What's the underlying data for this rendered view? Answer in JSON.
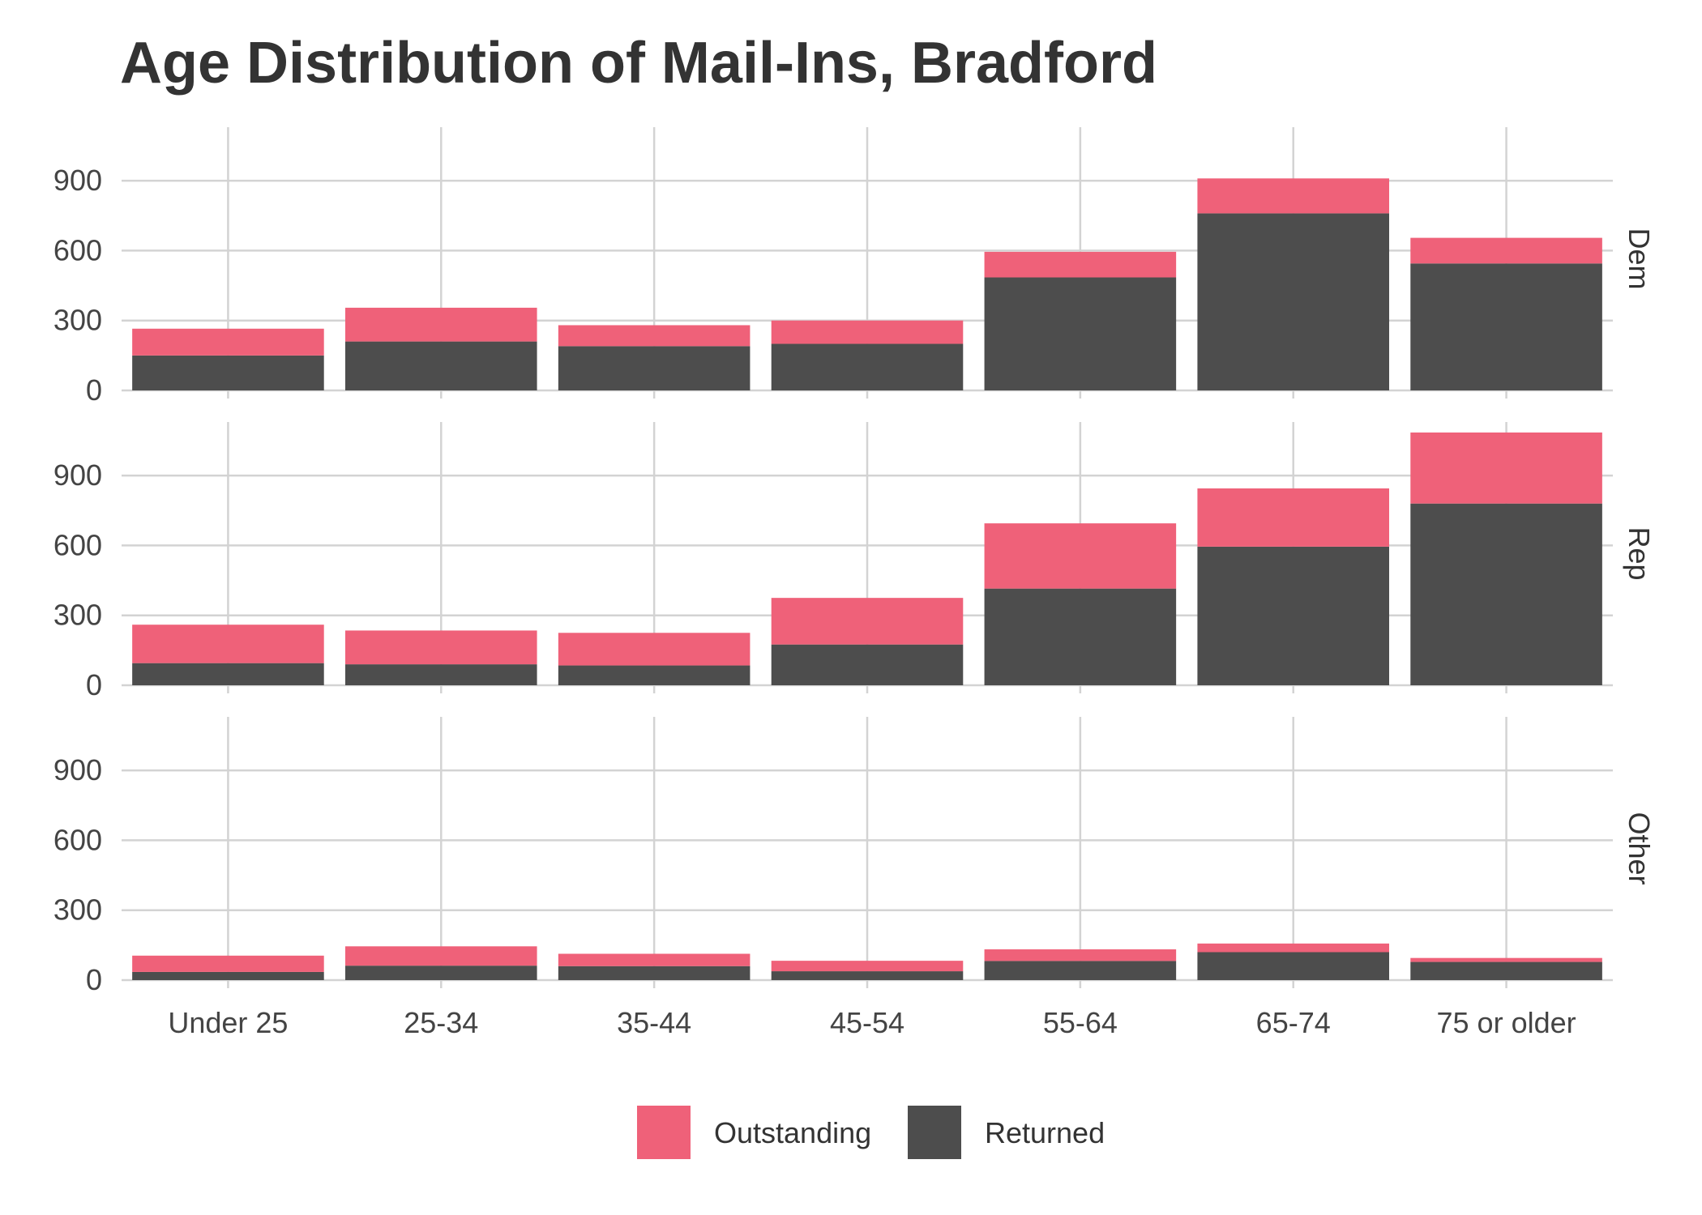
{
  "chart_data": {
    "type": "bar",
    "stacked": true,
    "faceted": true,
    "title": "Age Distribution of Mail-Ins, Bradford",
    "xlabel": "",
    "ylabel": "",
    "categories": [
      "Under 25",
      "25-34",
      "35-44",
      "45-54",
      "55-64",
      "65-74",
      "75 or older"
    ],
    "ylim": [
      0,
      1130
    ],
    "yticks": [
      0,
      300,
      600,
      900
    ],
    "legend_position": "bottom",
    "grid": true,
    "series_colors": {
      "Outstanding": "#EF6179",
      "Returned": "#4D4D4D"
    },
    "legend": [
      "Outstanding",
      "Returned"
    ],
    "facets": [
      {
        "name": "Dem",
        "series": [
          {
            "name": "Returned",
            "values": [
              150,
              210,
              190,
              200,
              485,
              760,
              545
            ]
          },
          {
            "name": "Outstanding",
            "values": [
              115,
              145,
              90,
              100,
              110,
              150,
              110
            ]
          }
        ]
      },
      {
        "name": "Rep",
        "series": [
          {
            "name": "Returned",
            "values": [
              95,
              90,
              85,
              175,
              415,
              595,
              780
            ]
          },
          {
            "name": "Outstanding",
            "values": [
              165,
              145,
              140,
              200,
              280,
              250,
              305
            ]
          }
        ]
      },
      {
        "name": "Other",
        "series": [
          {
            "name": "Returned",
            "values": [
              35,
              62,
              60,
              38,
              82,
              120,
              78
            ]
          },
          {
            "name": "Outstanding",
            "values": [
              70,
              83,
              53,
              45,
              50,
              37,
              17
            ]
          }
        ]
      }
    ]
  }
}
